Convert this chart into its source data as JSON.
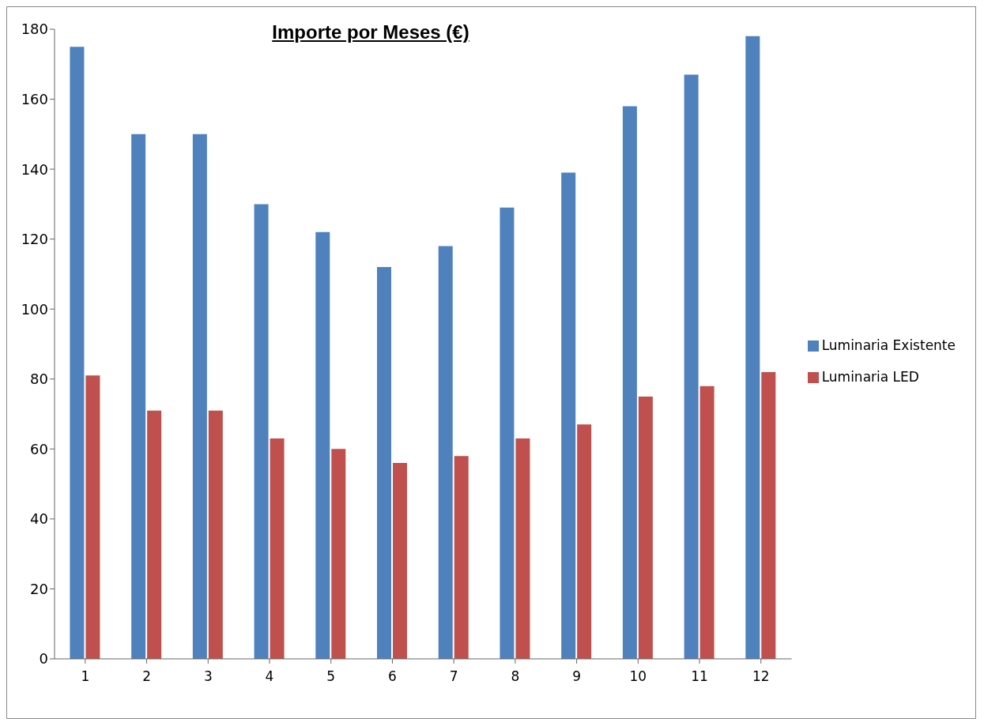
{
  "chart_data": {
    "type": "bar",
    "title": "Importe por Meses (€)",
    "categories": [
      "1",
      "2",
      "3",
      "4",
      "5",
      "6",
      "7",
      "8",
      "9",
      "10",
      "11",
      "12"
    ],
    "series": [
      {
        "name": "Luminaria Existente",
        "color": "#4f81bd",
        "values": [
          175,
          150,
          150,
          130,
          122,
          112,
          118,
          129,
          139,
          158,
          167,
          178
        ]
      },
      {
        "name": "Luminaria LED",
        "color": "#c0504d",
        "values": [
          81,
          71,
          71,
          63,
          60,
          56,
          58,
          63,
          67,
          75,
          78,
          82
        ]
      }
    ],
    "ylim": [
      0,
      180
    ],
    "yticks": [
      0,
      20,
      40,
      60,
      80,
      100,
      120,
      140,
      160,
      180
    ],
    "grid": false,
    "legend": "right"
  }
}
